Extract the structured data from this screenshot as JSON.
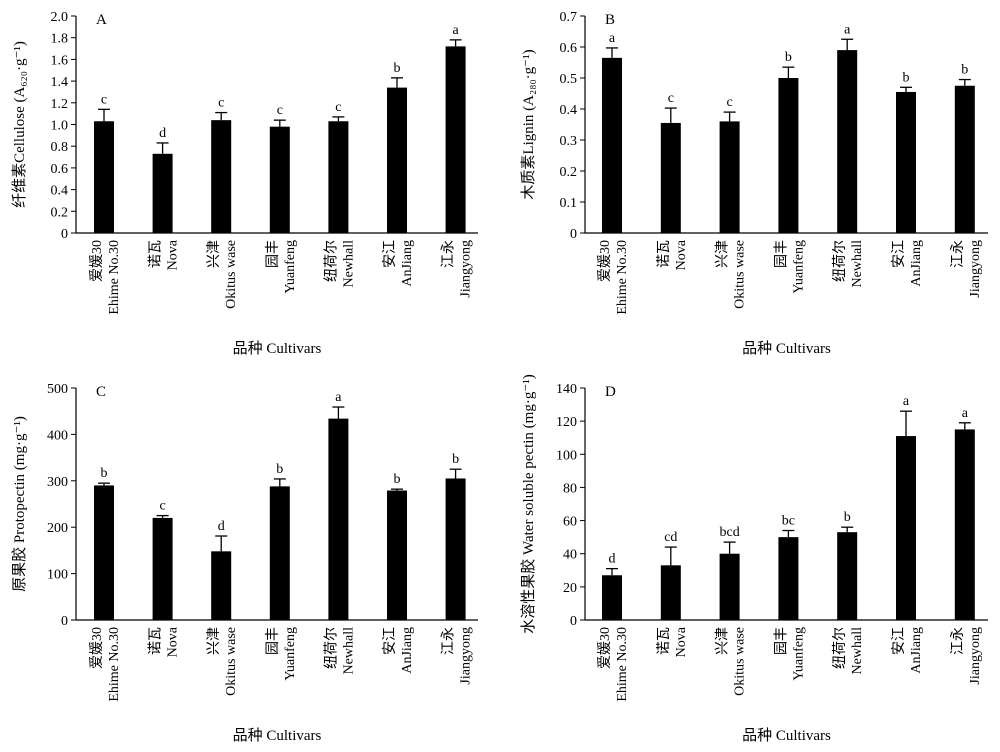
{
  "figure": {
    "cultivars": [
      {
        "cn": "爱媛30",
        "en": "Ehime No.30"
      },
      {
        "cn": "诺瓦",
        "en": "Nova"
      },
      {
        "cn": "兴津",
        "en": "Okitus wase"
      },
      {
        "cn": "园丰",
        "en": "Yuanfeng"
      },
      {
        "cn": "纽荷尔",
        "en": "Newhall"
      },
      {
        "cn": "安江",
        "en": "AnJiang"
      },
      {
        "cn": "江永",
        "en": "Jiangyong"
      }
    ]
  },
  "chart_data": [
    {
      "type": "bar",
      "panel": "A",
      "ylabel": "纤维素Cellulose (A₆₂₀·g⁻¹)",
      "xlabel": "品种 Cultivars",
      "ylim": [
        0,
        2.0
      ],
      "yticks": [
        "0",
        "0.2",
        "0.4",
        "0.6",
        "0.8",
        "1.0",
        "1.2",
        "1.4",
        "1.6",
        "1.8",
        "2.0"
      ],
      "values": [
        1.03,
        0.73,
        1.04,
        0.98,
        1.03,
        1.34,
        1.72
      ],
      "errors": [
        0.11,
        0.1,
        0.07,
        0.06,
        0.04,
        0.09,
        0.06
      ],
      "letters": [
        "c",
        "d",
        "c",
        "c",
        "c",
        "b",
        "a"
      ]
    },
    {
      "type": "bar",
      "panel": "B",
      "ylabel": "木质素Lignin (A₂₈₀·g⁻¹)",
      "xlabel": "品种 Cultivars",
      "ylim": [
        0,
        0.7
      ],
      "yticks": [
        "0",
        "0.1",
        "0.2",
        "0.3",
        "0.4",
        "0.5",
        "0.6",
        "0.7"
      ],
      "values": [
        0.565,
        0.355,
        0.36,
        0.5,
        0.59,
        0.455,
        0.475
      ],
      "errors": [
        0.032,
        0.048,
        0.03,
        0.035,
        0.035,
        0.015,
        0.02
      ],
      "letters": [
        "a",
        "c",
        "c",
        "b",
        "a",
        "b",
        "b"
      ]
    },
    {
      "type": "bar",
      "panel": "C",
      "ylabel": "原果胶 Protopectin (mg·g⁻¹)",
      "xlabel": "品种 Cultivars",
      "ylim": [
        0,
        500
      ],
      "yticks": [
        "0",
        "100",
        "200",
        "300",
        "400",
        "500"
      ],
      "values": [
        290,
        220,
        148,
        288,
        434,
        279,
        305
      ],
      "errors": [
        5,
        5,
        33,
        16,
        25,
        3,
        20
      ],
      "letters": [
        "b",
        "c",
        "d",
        "b",
        "a",
        "b",
        "b"
      ]
    },
    {
      "type": "bar",
      "panel": "D",
      "ylabel": "水溶性果胶 Water soluble pectin (mg·g⁻¹)",
      "xlabel": "品种 Cultivars",
      "ylim": [
        0,
        140
      ],
      "yticks": [
        "0",
        "20",
        "40",
        "60",
        "80",
        "100",
        "120",
        "140"
      ],
      "values": [
        27,
        33,
        40,
        50,
        53,
        111,
        115
      ],
      "errors": [
        4,
        11,
        7,
        4,
        3,
        15,
        4
      ],
      "letters": [
        "d",
        "cd",
        "bcd",
        "bc",
        "b",
        "a",
        "a"
      ]
    }
  ]
}
